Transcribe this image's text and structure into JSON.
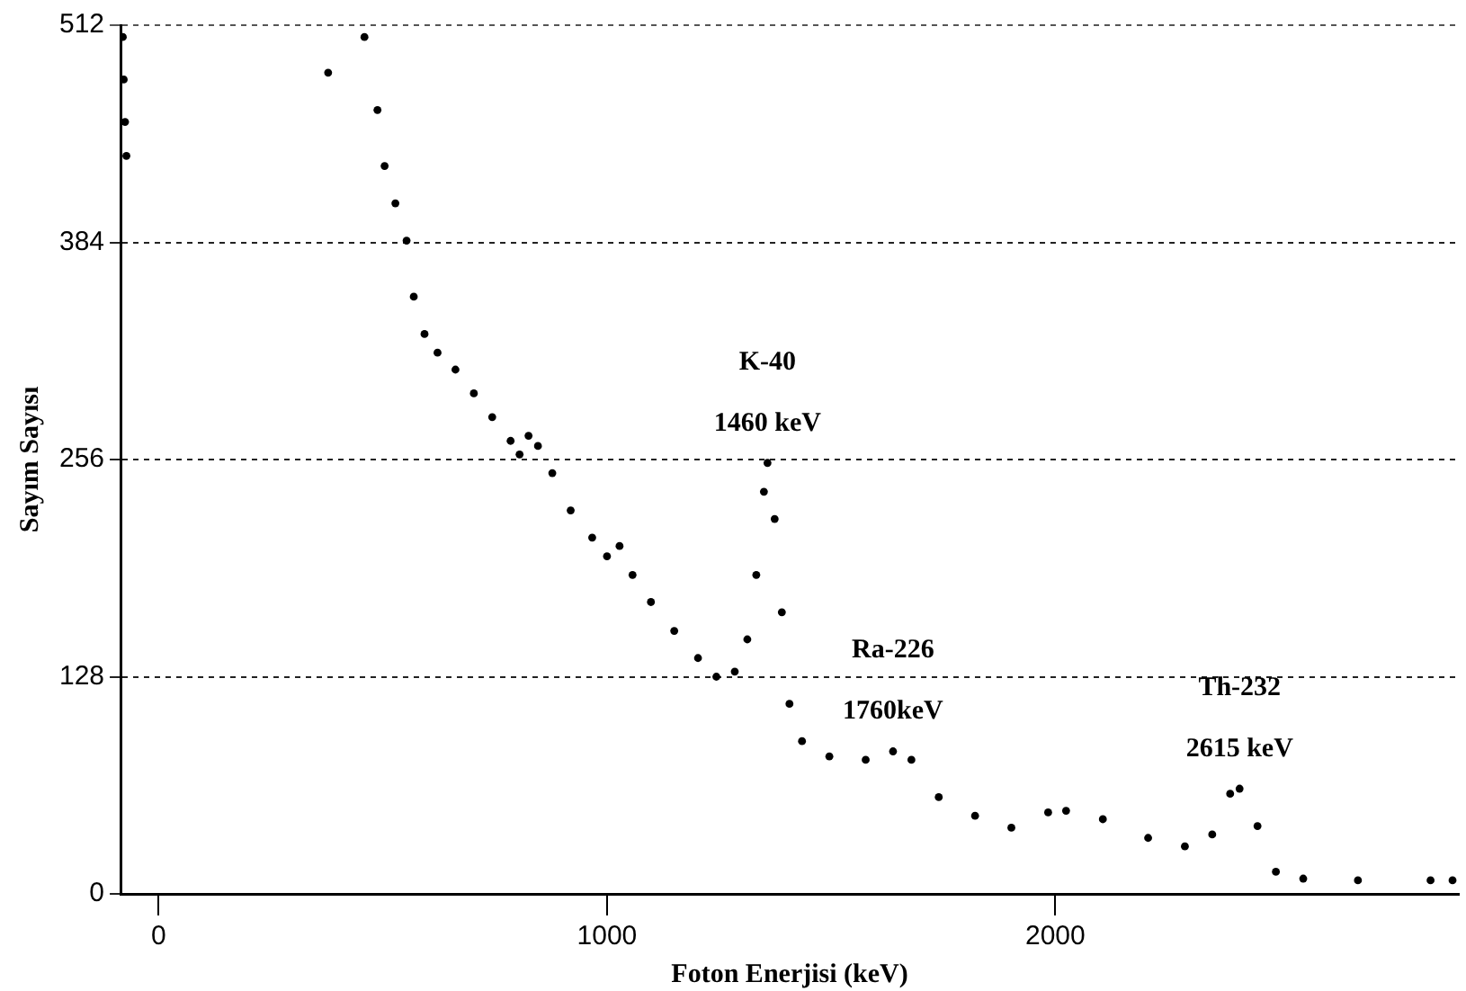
{
  "chart_data": {
    "type": "scatter",
    "xlabel": "Foton Enerjisi (keV)",
    "ylabel": "Sayım Sayısı",
    "xlim": [
      -85,
      2900
    ],
    "ylim": [
      0,
      512
    ],
    "xticks": [
      0,
      1000,
      2000
    ],
    "yticks": [
      0,
      128,
      256,
      384,
      512
    ],
    "grid": "y",
    "marker": "circle",
    "series": [
      {
        "color": "#000000",
        "x": [
          -80,
          -78,
          -75,
          -72,
          378,
          459,
          488,
          504,
          528,
          553,
          569,
          593,
          622,
          662,
          703,
          744,
          785,
          805,
          825,
          846,
          878,
          919,
          967,
          1000,
          1028,
          1057,
          1098,
          1150,
          1203,
          1244,
          1285,
          1313,
          1333,
          1350,
          1358,
          1374,
          1390,
          1407,
          1435,
          1496,
          1577,
          1638,
          1679,
          1740,
          1821,
          1902,
          1984,
          2024,
          2106,
          2207,
          2289,
          2350,
          2390,
          2411,
          2451,
          2492,
          2553,
          2675,
          2837,
          2886
        ],
        "values": [
          505,
          480,
          455,
          435,
          484,
          505,
          462,
          429,
          407,
          385,
          352,
          330,
          319,
          309,
          295,
          281,
          267,
          259,
          270,
          264,
          248,
          226,
          210,
          199,
          205,
          188,
          172,
          155,
          139,
          128,
          131,
          150,
          188,
          237,
          254,
          221,
          166,
          112,
          90,
          81,
          79,
          84,
          79,
          57,
          46,
          39,
          48,
          49,
          44,
          33,
          28,
          35,
          59,
          62,
          40,
          13,
          9,
          8,
          8,
          8
        ]
      }
    ],
    "annotations": [
      "K-40",
      {
        "text": "1460 keV",
        "x": 1358,
        "y": 254
      },
      "Ra-226",
      {
        "text": "1760keV",
        "x": 1638,
        "y": 84
      },
      "Th-232",
      {
        "text": "2615 keV",
        "x": 2411,
        "y": 62
      }
    ]
  }
}
